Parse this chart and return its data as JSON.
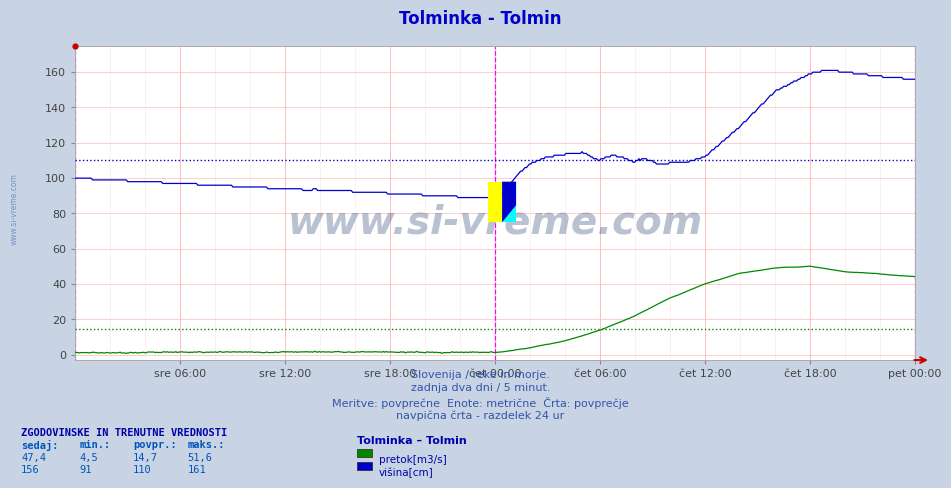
{
  "title": "Tolminka - Tolmin",
  "title_color": "#0000cc",
  "fig_bg_color": "#c8d4e4",
  "plot_bg_color": "#ffffff",
  "grid_major_color": "#ffbbbb",
  "grid_minor_color": "#ffe8e8",
  "blue_color": "#0000cc",
  "green_color": "#008800",
  "magenta_color": "#ff00ff",
  "blue_avg": 110,
  "green_avg": 14.7,
  "ylim": [
    -3,
    175
  ],
  "yticks": [
    0,
    20,
    40,
    60,
    80,
    100,
    120,
    140,
    160
  ],
  "xtick_positions": [
    6,
    12,
    18,
    24,
    30,
    36,
    42,
    48
  ],
  "xlabel_ticks": [
    "sre 06:00",
    "sre 12:00",
    "sre 18:00",
    "čet 00:00",
    "čet 06:00",
    "čet 12:00",
    "čet 18:00",
    "pet 00:00"
  ],
  "watermark": "www.si-vreme.com",
  "text_lines": [
    "Slovenija / reke in morje.",
    "zadnja dva dni / 5 minut.",
    "Meritve: povprečne  Enote: metrične  Črta: povprečje",
    "navpična črta - razdelek 24 ur"
  ],
  "stats_header": "ZGODOVINSKE IN TRENUTNE VREDNOSTI",
  "stats_cols": [
    "sedaj:",
    "min.:",
    "povpr.:",
    "maks.:"
  ],
  "stats_data": [
    [
      "47,4",
      "4,5",
      "14,7",
      "51,6"
    ],
    [
      "156",
      "91",
      "110",
      "161"
    ]
  ],
  "legend_title": "Tolminka – Tolmin",
  "legend_items": [
    "pretok[m3/s]",
    "višina[cm]"
  ],
  "legend_colors": [
    "#008800",
    "#0000cc"
  ],
  "n_points": 576,
  "hours_total": 48
}
